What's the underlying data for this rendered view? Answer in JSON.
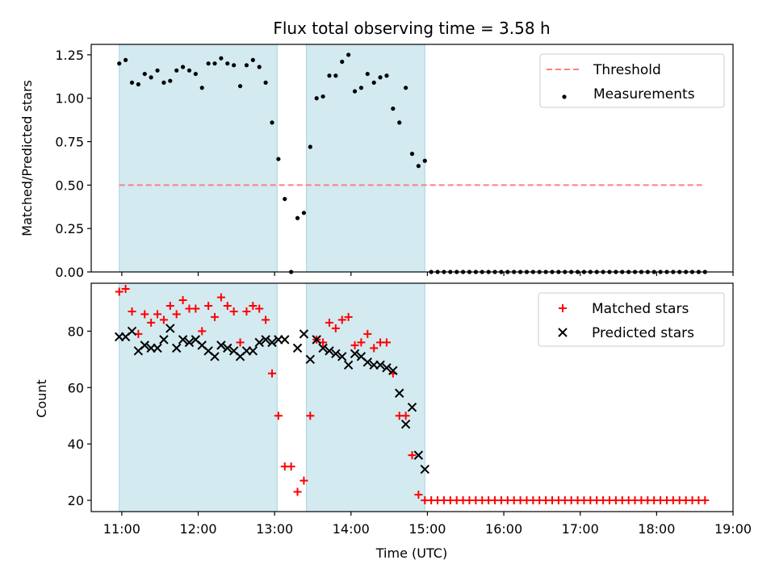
{
  "chart_data": [
    {
      "type": "scatter",
      "panel": "top",
      "title": "Flux total observing time = 3.58 h",
      "ylabel": "Matched/Predicted stars",
      "ylim": [
        0,
        1.31
      ],
      "yticks": [
        0.0,
        0.25,
        0.5,
        0.75,
        1.0,
        1.25
      ],
      "ytick_labels": [
        "0.00",
        "0.25",
        "0.50",
        "0.75",
        "1.00",
        "1.25"
      ],
      "legend_position": "top-right",
      "shaded_intervals": [
        [
          "10:58",
          "13:02"
        ],
        [
          "13:25",
          "14:58"
        ]
      ],
      "shade_color": "#d3eaf0",
      "threshold": {
        "name": "Threshold",
        "value": 0.5,
        "x_start": "10:58",
        "x_end": "18:38",
        "color": "#ff7f7f"
      },
      "series": [
        {
          "name": "Measurements",
          "color": "#000000",
          "x": [
            "10:58",
            "11:03",
            "11:08",
            "11:13",
            "11:18",
            "11:23",
            "11:28",
            "11:33",
            "11:38",
            "11:43",
            "11:48",
            "11:53",
            "11:58",
            "12:03",
            "12:08",
            "12:13",
            "12:18",
            "12:23",
            "12:28",
            "12:33",
            "12:38",
            "12:43",
            "12:48",
            "12:53",
            "12:58",
            "13:03",
            "13:08",
            "13:13",
            "13:18",
            "13:23",
            "13:28",
            "13:33",
            "13:38",
            "13:43",
            "13:48",
            "13:53",
            "13:58",
            "14:03",
            "14:08",
            "14:13",
            "14:18",
            "14:23",
            "14:28",
            "14:33",
            "14:38",
            "14:43",
            "14:48",
            "14:53",
            "14:58",
            "15:03",
            "15:08",
            "15:13",
            "15:18",
            "15:23",
            "15:28",
            "15:33",
            "15:38",
            "15:43",
            "15:48",
            "15:53",
            "15:58",
            "16:03",
            "16:08",
            "16:13",
            "16:18",
            "16:23",
            "16:28",
            "16:33",
            "16:38",
            "16:43",
            "16:48",
            "16:53",
            "16:58",
            "17:03",
            "17:08",
            "17:13",
            "17:18",
            "17:23",
            "17:28",
            "17:33",
            "17:38",
            "17:43",
            "17:48",
            "17:53",
            "17:58",
            "18:03",
            "18:08",
            "18:13",
            "18:18",
            "18:23",
            "18:28",
            "18:33",
            "18:38"
          ],
          "y": [
            1.2,
            1.22,
            1.09,
            1.08,
            1.14,
            1.12,
            1.16,
            1.09,
            1.1,
            1.16,
            1.18,
            1.16,
            1.14,
            1.06,
            1.2,
            1.2,
            1.23,
            1.2,
            1.19,
            1.07,
            1.19,
            1.22,
            1.18,
            1.09,
            0.86,
            0.65,
            0.42,
            0.0,
            0.31,
            0.34,
            0.72,
            1.0,
            1.01,
            1.13,
            1.13,
            1.21,
            1.25,
            1.04,
            1.06,
            1.14,
            1.09,
            1.12,
            1.13,
            0.94,
            0.86,
            1.06,
            0.68,
            0.61,
            0.64,
            0,
            0,
            0,
            0,
            0,
            0,
            0,
            0,
            0,
            0,
            0,
            0,
            0,
            0,
            0,
            0,
            0,
            0,
            0,
            0,
            0,
            0,
            0,
            0,
            0,
            0,
            0,
            0,
            0,
            0,
            0,
            0,
            0,
            0,
            0,
            0,
            0,
            0,
            0,
            0,
            0,
            0,
            0,
            0
          ]
        }
      ]
    },
    {
      "type": "scatter",
      "panel": "bottom",
      "xlabel": "Time (UTC)",
      "ylabel": "Count",
      "xlim": [
        "10:36",
        "19:00"
      ],
      "xticks": [
        "11:00",
        "12:00",
        "13:00",
        "14:00",
        "15:00",
        "16:00",
        "17:00",
        "18:00",
        "19:00"
      ],
      "ylim": [
        16,
        97
      ],
      "yticks": [
        20,
        40,
        60,
        80
      ],
      "ytick_labels": [
        "20",
        "40",
        "60",
        "80"
      ],
      "legend_position": "top-right",
      "shaded_intervals": [
        [
          "10:58",
          "13:02"
        ],
        [
          "13:25",
          "14:58"
        ]
      ],
      "shade_color": "#d3eaf0",
      "series": [
        {
          "name": "Matched stars",
          "marker": "plus",
          "color": "#ff0000",
          "x": [
            "10:58",
            "11:03",
            "11:08",
            "11:13",
            "11:18",
            "11:23",
            "11:28",
            "11:33",
            "11:38",
            "11:43",
            "11:48",
            "11:53",
            "11:58",
            "12:03",
            "12:08",
            "12:13",
            "12:18",
            "12:23",
            "12:28",
            "12:33",
            "12:38",
            "12:43",
            "12:48",
            "12:53",
            "12:58",
            "13:03",
            "13:08",
            "13:13",
            "13:18",
            "13:23",
            "13:28",
            "13:33",
            "13:38",
            "13:43",
            "13:48",
            "13:53",
            "13:58",
            "14:03",
            "14:08",
            "14:13",
            "14:18",
            "14:23",
            "14:28",
            "14:33",
            "14:38",
            "14:43",
            "14:48",
            "14:53",
            "14:58",
            "15:03",
            "15:08",
            "15:13",
            "15:18",
            "15:23",
            "15:28",
            "15:33",
            "15:38",
            "15:43",
            "15:48",
            "15:53",
            "15:58",
            "16:03",
            "16:08",
            "16:13",
            "16:18",
            "16:23",
            "16:28",
            "16:33",
            "16:38",
            "16:43",
            "16:48",
            "16:53",
            "16:58",
            "17:03",
            "17:08",
            "17:13",
            "17:18",
            "17:23",
            "17:28",
            "17:33",
            "17:38",
            "17:43",
            "17:48",
            "17:53",
            "17:58",
            "18:03",
            "18:08",
            "18:13",
            "18:18",
            "18:23",
            "18:28",
            "18:33",
            "18:38"
          ],
          "y": [
            94,
            95,
            87,
            79,
            86,
            83,
            86,
            84,
            89,
            86,
            91,
            88,
            88,
            80,
            89,
            85,
            92,
            89,
            87,
            76,
            87,
            89,
            88,
            84,
            65,
            50,
            32,
            32,
            23,
            27,
            50,
            77,
            76,
            83,
            81,
            84,
            85,
            75,
            76,
            79,
            74,
            76,
            76,
            65,
            50,
            50,
            36,
            22,
            20,
            20,
            20,
            20,
            20,
            20,
            20,
            20,
            20,
            20,
            20,
            20,
            20,
            20,
            20,
            20,
            20,
            20,
            20,
            20,
            20,
            20,
            20,
            20,
            20,
            20,
            20,
            20,
            20,
            20,
            20,
            20,
            20,
            20,
            20,
            20,
            20,
            20,
            20,
            20,
            20,
            20,
            20,
            20,
            20
          ]
        },
        {
          "name": "Predicted stars",
          "marker": "x",
          "color": "#000000",
          "x": [
            "10:58",
            "11:03",
            "11:08",
            "11:13",
            "11:18",
            "11:23",
            "11:28",
            "11:33",
            "11:38",
            "11:43",
            "11:48",
            "11:53",
            "11:58",
            "12:03",
            "12:08",
            "12:13",
            "12:18",
            "12:23",
            "12:28",
            "12:33",
            "12:38",
            "12:43",
            "12:48",
            "12:53",
            "12:58",
            "13:03",
            "13:08",
            "13:18",
            "13:23",
            "13:28",
            "13:33",
            "13:38",
            "13:43",
            "13:48",
            "13:53",
            "13:58",
            "14:03",
            "14:08",
            "14:13",
            "14:18",
            "14:23",
            "14:28",
            "14:33",
            "14:38",
            "14:43",
            "14:48",
            "14:53",
            "14:58"
          ],
          "y": [
            78,
            78,
            80,
            73,
            75,
            74,
            74,
            77,
            81,
            74,
            77,
            76,
            77,
            75,
            73,
            71,
            75,
            74,
            73,
            71,
            73,
            73,
            76,
            77,
            76,
            77,
            77,
            74,
            79,
            70,
            77,
            74,
            73,
            72,
            71,
            68,
            72,
            71,
            69,
            68,
            68,
            67,
            66,
            58,
            47,
            53,
            36,
            31
          ]
        }
      ]
    }
  ]
}
